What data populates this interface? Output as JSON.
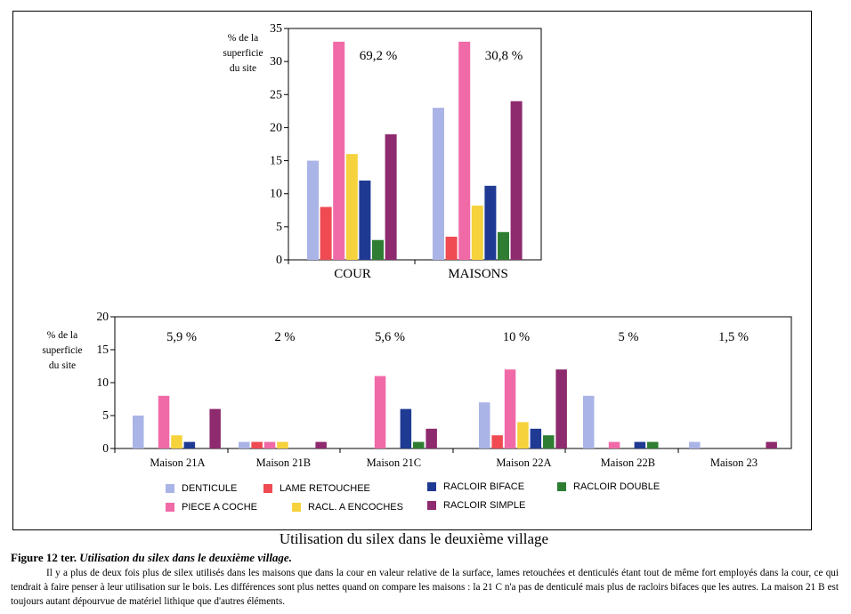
{
  "title": "Utilisation du silex dans le deuxième village",
  "figure": {
    "label": "Figure 12 ter.",
    "subtitle": "Utilisation du silex dans le deuxième village.",
    "caption": "Il y a plus de deux fois plus de silex utilisés dans les maisons que dans la cour en valeur relative de la surface, lames retouchées et denticulés étant tout de même fort employés dans la cour, ce qui tendrait à faire penser à leur utilisation sur le bois. Les différences sont plus nettes quand on compare les maisons : la 21 C n'a pas de denticulé mais plus de racloirs bifaces que les autres. La maison 21 B est toujours autant dépourvue de matériel lithique que d'autres éléments."
  },
  "legend": [
    {
      "key": "denticule",
      "label": "DENTICULE",
      "color": "#aab4e6"
    },
    {
      "key": "lame",
      "label": "LAME RETOUCHEE",
      "color": "#f04a52"
    },
    {
      "key": "racloir_biface",
      "label": "RACLOIR BIFACE",
      "color": "#1f3a93"
    },
    {
      "key": "racloir_double",
      "label": "RACLOIR DOUBLE",
      "color": "#2e7d32"
    },
    {
      "key": "piece_coche",
      "label": "PIECE A COCHE",
      "color": "#f06aa8"
    },
    {
      "key": "racl_encoches",
      "label": "RACL. A ENCOCHES",
      "color": "#f6d23c"
    },
    {
      "key": "racloir_simple",
      "label": "RACLOIR SIMPLE",
      "color": "#8e2a6e"
    }
  ],
  "chart_data": [
    {
      "type": "bar",
      "ylabel": "% de la superficie du site",
      "ylim": [
        0,
        35
      ],
      "yticks": [
        "0",
        "5",
        "10",
        "15",
        "20",
        "25",
        "30",
        "35"
      ],
      "categories": [
        "COUR",
        "MAISONS"
      ],
      "annotations": [
        "69,2 %",
        "30,8 %"
      ],
      "series": [
        {
          "name": "DENTICULE",
          "values": [
            15,
            23
          ]
        },
        {
          "name": "LAME RETOUCHEE",
          "values": [
            8,
            3.5
          ]
        },
        {
          "name": "PIECE A COCHE",
          "values": [
            33,
            33
          ]
        },
        {
          "name": "RACL. A ENCOCHES",
          "values": [
            16,
            8.2
          ]
        },
        {
          "name": "RACLOIR BIFACE",
          "values": [
            12,
            11.2
          ]
        },
        {
          "name": "RACLOIR DOUBLE",
          "values": [
            3,
            4.2
          ]
        },
        {
          "name": "RACLOIR SIMPLE",
          "values": [
            19,
            24
          ]
        }
      ]
    },
    {
      "type": "bar",
      "ylabel": "% de la superficie du site",
      "ylim": [
        0,
        20
      ],
      "yticks": [
        "0",
        "5",
        "10",
        "15",
        "20"
      ],
      "categories": [
        "Maison 21A",
        "Maison 21B",
        "Maison 21C",
        "Maison 22A",
        "Maison 22B",
        "Maison 23"
      ],
      "annotations": [
        "5,9 %",
        "2 %",
        "5,6 %",
        "10 %",
        "5 %",
        "1,5 %"
      ],
      "series": [
        {
          "name": "DENTICULE",
          "values": [
            5,
            1,
            0,
            7,
            8,
            1
          ]
        },
        {
          "name": "LAME RETOUCHEE",
          "values": [
            0,
            1,
            0,
            2,
            0,
            0
          ]
        },
        {
          "name": "PIECE A COCHE",
          "values": [
            8,
            1,
            11,
            12,
            1,
            0
          ]
        },
        {
          "name": "RACL. A ENCOCHES",
          "values": [
            2,
            1,
            0,
            4,
            0,
            0
          ]
        },
        {
          "name": "RACLOIR BIFACE",
          "values": [
            1,
            0,
            6,
            3,
            1,
            0
          ]
        },
        {
          "name": "RACLOIR DOUBLE",
          "values": [
            0,
            0,
            1,
            2,
            1,
            0
          ]
        },
        {
          "name": "RACLOIR SIMPLE",
          "values": [
            6,
            1,
            3,
            12,
            0,
            1
          ]
        }
      ]
    }
  ]
}
